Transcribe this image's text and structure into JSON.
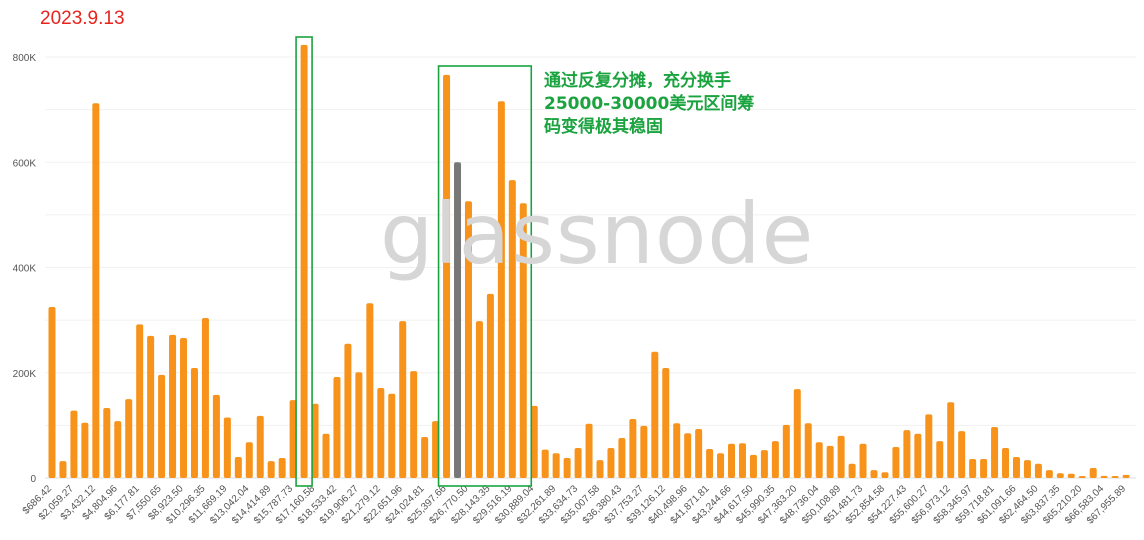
{
  "annotation_date": "2023.9.13",
  "annotation_note": [
    "通过反复分摊，充分换手",
    "25000-30000美元区间筹",
    "码变得极其稳固"
  ],
  "watermark": "glassnode",
  "colors": {
    "bar": "#f7931a",
    "highlight_bar": "#777777",
    "box": "#1aa33f",
    "date_text": "#e8231d",
    "note_text": "#1aa33f"
  },
  "chart_data": {
    "type": "bar",
    "title": "",
    "xlabel": "",
    "ylabel": "",
    "ylim": [
      0,
      800000
    ],
    "yticks": [
      0,
      200000,
      400000,
      600000,
      800000
    ],
    "ytick_labels": [
      "0",
      "200K",
      "400K",
      "600K",
      "800K"
    ],
    "grid": true,
    "bin_step": 686.42,
    "xtick_labels": [
      "$686.42",
      "$2,059.27",
      "$3,432.12",
      "$4,804.96",
      "$6,177.81",
      "$7,550.65",
      "$8,923.50",
      "$10,296.35",
      "$11,669.19",
      "$13,042.04",
      "$14,414.89",
      "$15,787.73",
      "$17,160.58",
      "$18,533.42",
      "$19,906.27",
      "$21,279.12",
      "$22,651.96",
      "$24,024.81",
      "$25,397.66",
      "$26,770.50",
      "$28,143.35",
      "$29,516.19",
      "$30,889.04",
      "$32,261.89",
      "$33,634.73",
      "$35,007.58",
      "$36,380.43",
      "$37,753.27",
      "$39,126.12",
      "$40,498.96",
      "$41,871.81",
      "$43,244.66",
      "$44,617.50",
      "$45,990.35",
      "$47,363.20",
      "$48,736.04",
      "$50,108.89",
      "$51,481.73",
      "$52,854.58",
      "$54,227.43",
      "$55,600.27",
      "$56,973.12",
      "$58,345.97",
      "$59,718.81",
      "$61,091.66",
      "$62,464.50",
      "$63,837.35",
      "$65,210.20",
      "$66,583.04",
      "$67,955.89"
    ],
    "values": [
      325000,
      32000,
      128000,
      105000,
      712000,
      133000,
      108000,
      150000,
      292000,
      270000,
      196000,
      272000,
      266000,
      209000,
      304000,
      158000,
      115000,
      40000,
      68000,
      118000,
      32000,
      38000,
      148000,
      823000,
      141000,
      84000,
      192000,
      255000,
      201000,
      332000,
      171000,
      160000,
      298000,
      203000,
      78000,
      108000,
      766000,
      600000,
      526000,
      298000,
      350000,
      716000,
      566000,
      522000,
      137000,
      54000,
      47000,
      38000,
      57000,
      103000,
      34000,
      57000,
      76000,
      112000,
      99000,
      240000,
      209000,
      104000,
      85000,
      93000,
      55000,
      47000,
      65000,
      66000,
      44000,
      53000,
      70000,
      101000,
      169000,
      104000,
      68000,
      61000,
      80000,
      27000,
      65000,
      15000,
      11000,
      59000,
      91000,
      84000,
      121000,
      70000,
      144000,
      89000,
      36000,
      36000,
      97000,
      57000,
      40000,
      34000,
      27000,
      15000,
      9000,
      8000,
      2000,
      19000,
      4000,
      3000,
      6000
    ],
    "highlight_index": 37,
    "boxes": [
      {
        "from_index": 23,
        "to_index": 23
      },
      {
        "from_index": 36,
        "to_index": 43
      }
    ]
  }
}
